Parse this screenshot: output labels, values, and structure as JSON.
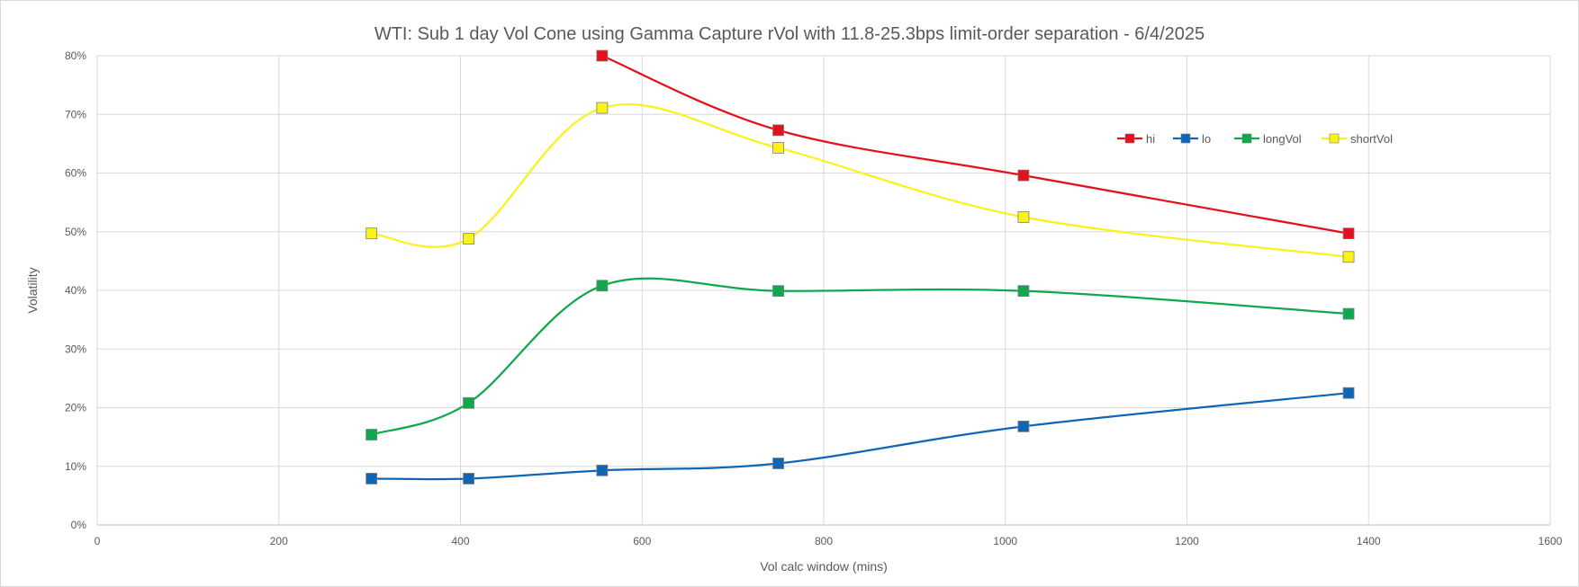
{
  "chart_data": {
    "type": "scatter",
    "title": "WTI: Sub 1 day Vol Cone using Gamma Capture rVol with 11.8-25.3bps limit-order separation - 6/4/2025",
    "xlabel": "Vol calc window (mins)",
    "ylabel": "Volatility",
    "xlim": [
      0,
      1600
    ],
    "ylim": [
      0,
      0.8
    ],
    "x_ticks": [
      "0",
      "200",
      "400",
      "600",
      "800",
      "1000",
      "1200",
      "1400",
      "1600"
    ],
    "y_ticks": [
      "0%",
      "10%",
      "20%",
      "30%",
      "40%",
      "50%",
      "60%",
      "70%",
      "80%"
    ],
    "grid": true,
    "legend_position": "top-right",
    "smooth_lines": true,
    "x": [
      302,
      409,
      556,
      750,
      1020,
      1378
    ],
    "series": [
      {
        "name": "hi",
        "color": "#e3111b",
        "values": [
          null,
          null,
          0.8,
          0.673,
          0.596,
          0.497
        ]
      },
      {
        "name": "lo",
        "color": "#0e66b4",
        "values": [
          0.079,
          0.079,
          0.093,
          0.105,
          0.168,
          0.225
        ]
      },
      {
        "name": "longVol",
        "color": "#10a84d",
        "values": [
          0.154,
          0.208,
          0.408,
          0.399,
          0.399,
          0.36
        ]
      },
      {
        "name": "shortVol",
        "color": "#fbf21b",
        "values": [
          0.497,
          0.488,
          0.711,
          0.643,
          0.525,
          0.457
        ]
      }
    ]
  }
}
